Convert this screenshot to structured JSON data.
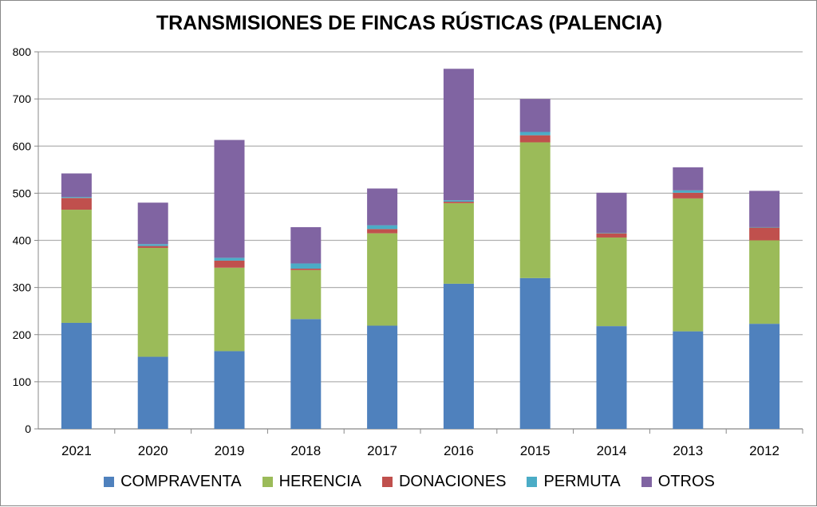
{
  "chart_data": {
    "type": "bar",
    "stacked": true,
    "title": "TRANSMISIONES DE FINCAS RÚSTICAS (PALENCIA)",
    "xlabel": "",
    "ylabel": "",
    "ylim": [
      0,
      800
    ],
    "yticks": [
      "0",
      "100",
      "200",
      "300",
      "400",
      "500",
      "600",
      "700",
      "800"
    ],
    "grid": true,
    "legend_position": "bottom",
    "categories": [
      "2021",
      "2020",
      "2019",
      "2018",
      "2017",
      "2016",
      "2015",
      "2014",
      "2013",
      "2012"
    ],
    "series": [
      {
        "name": "COMPRAVENTA",
        "color": "#4F81BD",
        "values": [
          225,
          153,
          165,
          233,
          219,
          308,
          320,
          218,
          207,
          223
        ]
      },
      {
        "name": "HERENCIA",
        "color": "#9BBB59",
        "values": [
          240,
          231,
          177,
          104,
          196,
          171,
          288,
          188,
          282,
          177
        ]
      },
      {
        "name": "DONACIONES",
        "color": "#C0504D",
        "values": [
          25,
          4,
          15,
          3,
          9,
          3,
          15,
          9,
          12,
          27
        ]
      },
      {
        "name": "PERMUTA",
        "color": "#4BACC6",
        "values": [
          2,
          4,
          6,
          11,
          8,
          3,
          7,
          1,
          5,
          1
        ]
      },
      {
        "name": "OTROS",
        "color": "#8064A2",
        "values": [
          50,
          88,
          250,
          77,
          78,
          279,
          70,
          85,
          49,
          77
        ]
      }
    ]
  }
}
